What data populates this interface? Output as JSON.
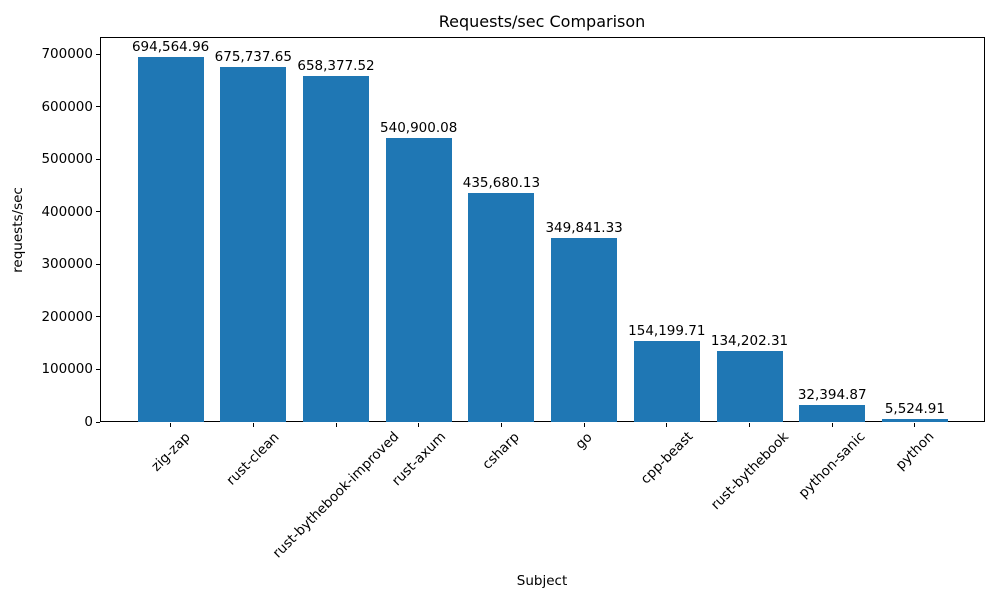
{
  "chart_data": {
    "type": "bar",
    "title": "Requests/sec Comparison",
    "xlabel": "Subject",
    "ylabel": "requests/sec",
    "categories": [
      "zig-zap",
      "rust-clean",
      "rust-bythebook-improved",
      "rust-axum",
      "csharp",
      "go",
      "cpp-beast",
      "rust-bythebook",
      "python-sanic",
      "python"
    ],
    "values": [
      694564.96,
      675737.65,
      658377.52,
      540900.08,
      435680.13,
      349841.33,
      154199.71,
      134202.31,
      32394.87,
      5524.91
    ],
    "value_labels": [
      "694,564.96",
      "675,737.65",
      "658,377.52",
      "540,900.08",
      "435,680.13",
      "349,841.33",
      "154,199.71",
      "134,202.31",
      "32,394.87",
      "5,524.91"
    ],
    "yticks": [
      0,
      100000,
      200000,
      300000,
      400000,
      500000,
      600000,
      700000
    ],
    "ylim": [
      0,
      700000
    ],
    "bar_color": "#1f77b4",
    "text_color": "#000000",
    "grid": false,
    "x_tick_rotation_deg": 45
  }
}
